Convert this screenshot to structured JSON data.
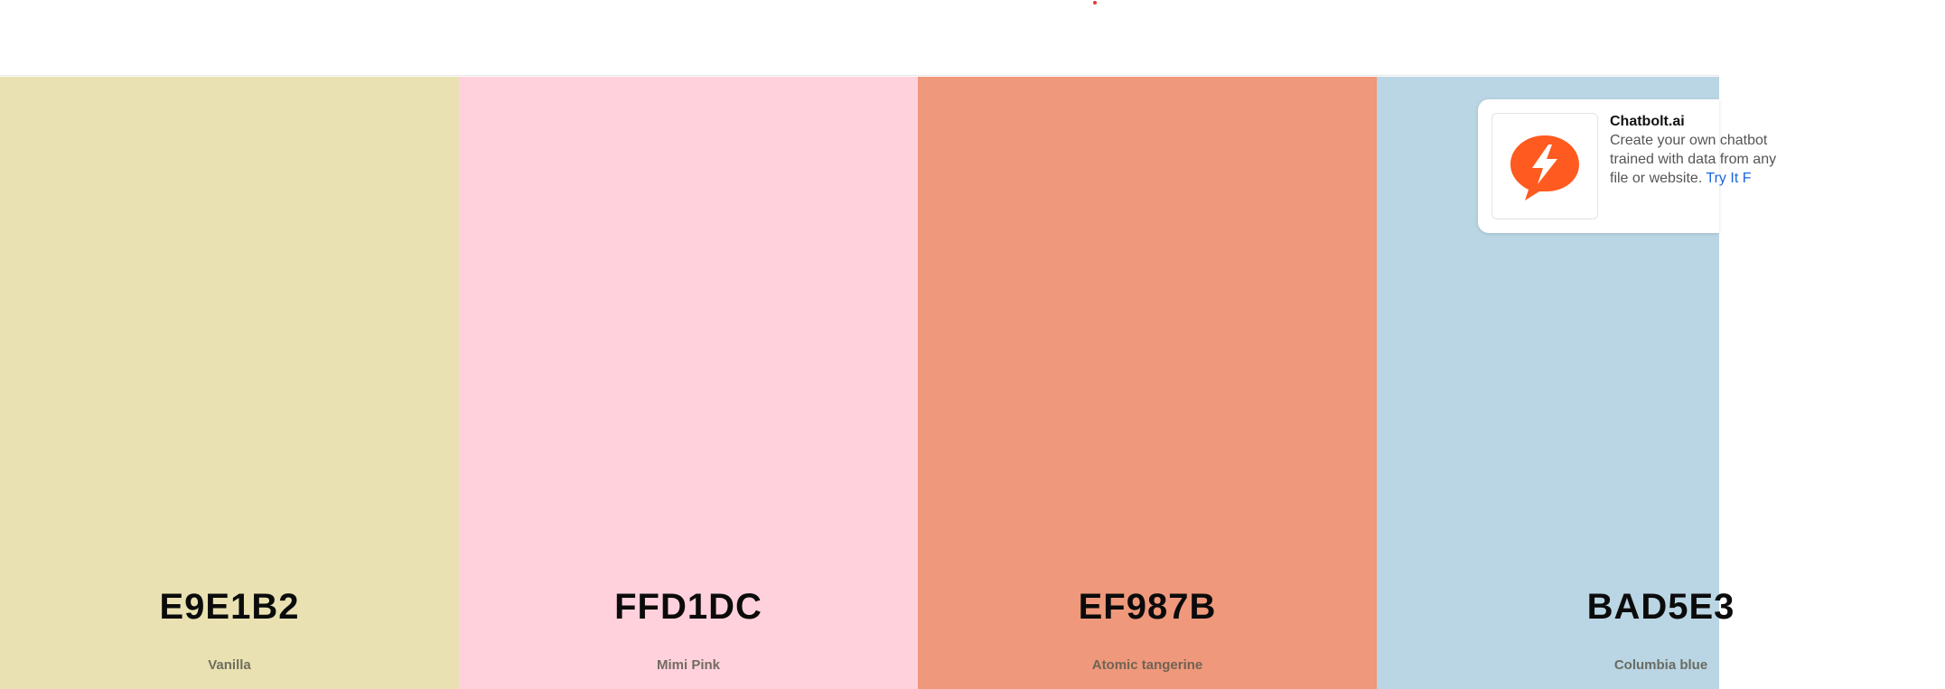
{
  "palette": {
    "swatches": [
      {
        "hex": "E9E1B2",
        "name": "Vanilla",
        "color": "#E9E1B2"
      },
      {
        "hex": "FFD1DC",
        "name": "Mimi Pink",
        "color": "#FFD1DC"
      },
      {
        "hex": "EF987B",
        "name": "Atomic tangerine",
        "color": "#EF987B"
      },
      {
        "hex": "BAD5E3",
        "name": "Columbia blue",
        "color": "#BAD5E3"
      }
    ]
  },
  "ad": {
    "logo_icon": "chatbot-lightning-icon",
    "logo_color": "#FF5A1F",
    "title": "Chatbolt.ai",
    "body": "Create your own chatbot trained with data from any file or website.",
    "cta": "Try It F"
  }
}
